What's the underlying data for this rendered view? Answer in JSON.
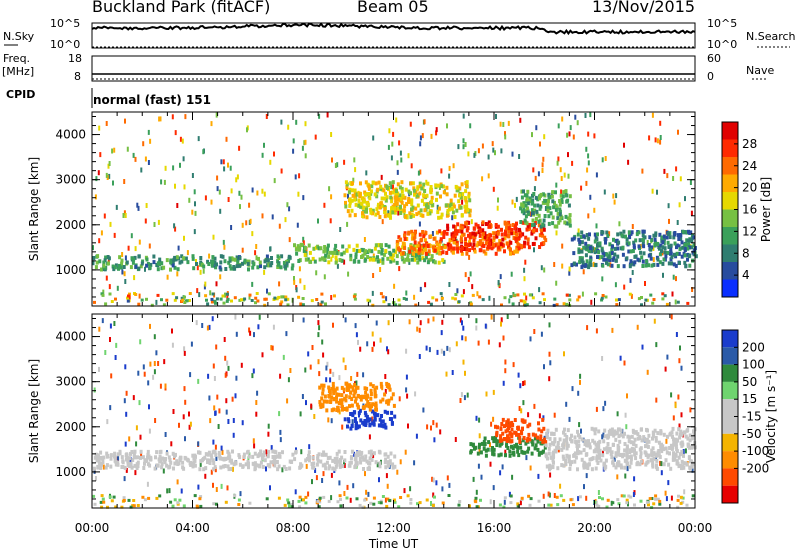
{
  "header": {
    "station": "Buckland Park (fitACF)",
    "beam": "Beam 05",
    "date": "13/Nov/2015"
  },
  "strip": {
    "nsky_label": "N.Sky",
    "nsearch_label": "N.Search",
    "nsky_ticks": [
      "10^5",
      "10^0"
    ],
    "nsearch_ticks": [
      "10^5",
      "10^0"
    ],
    "freq_label_line1": "Freq.",
    "freq_label_line2": "[MHz]",
    "freq_ticks": [
      "18",
      "8"
    ],
    "nave_label": "Nave",
    "nave_ticks": [
      "60",
      "0"
    ],
    "cpid_label": "CPID",
    "cpid_text": "normal (fast) 151"
  },
  "colors": {
    "velocity_positive": [
      "#1a3ccc",
      "#2a5aa8",
      "#2f8a3c",
      "#6fd46f"
    ],
    "velocity_neutral": "#c7c7c7",
    "velocity_negative": [
      "#f4b400",
      "#ff8c00",
      "#ff4a00",
      "#e60000"
    ],
    "power_scale": [
      "#0a2fff",
      "#284c9e",
      "#2f7d70",
      "#3aa05a",
      "#76c043",
      "#e6d800",
      "#ffaa00",
      "#ff6a00",
      "#ff2a00",
      "#e00000"
    ]
  },
  "chart_data": [
    {
      "type": "heatmap",
      "panel": "power",
      "ylabel": "Slant Range [km]",
      "yticks": [
        "1000",
        "2000",
        "3000",
        "4000"
      ],
      "ylim": [
        200,
        4500
      ],
      "xlim": [
        0,
        24
      ],
      "colorbar_label": "Power [dB]",
      "colorbar_ticks": [
        "4",
        "8",
        "12",
        "16",
        "20",
        "24",
        "28"
      ],
      "colorbar_range": [
        0,
        32
      ],
      "features": [
        {
          "t": [
            0,
            8
          ],
          "range": [
            1050,
            1350
          ],
          "db": 10
        },
        {
          "t": [
            8,
            14
          ],
          "range": [
            1200,
            1600
          ],
          "db": 14
        },
        {
          "t": [
            12,
            17
          ],
          "range": [
            1400,
            1900
          ],
          "db": 24
        },
        {
          "t": [
            14,
            18
          ],
          "range": [
            1500,
            2100
          ],
          "db": 27
        },
        {
          "t": [
            10,
            15
          ],
          "range": [
            2200,
            3000
          ],
          "db": 18
        },
        {
          "t": [
            17,
            19
          ],
          "range": [
            2000,
            2800
          ],
          "db": 12
        },
        {
          "t": [
            19,
            24
          ],
          "range": [
            1100,
            1900
          ],
          "db": 8
        }
      ]
    },
    {
      "type": "heatmap",
      "panel": "velocity",
      "ylabel": "Slant Range [km]",
      "yticks": [
        "1000",
        "2000",
        "3000",
        "4000"
      ],
      "ylim": [
        200,
        4500
      ],
      "xlabel": "Time UT",
      "xticks": [
        "00:00",
        "04:00",
        "08:00",
        "12:00",
        "16:00",
        "20:00",
        "00:00"
      ],
      "xlim": [
        0,
        24
      ],
      "colorbar_label": "Velocity [m s⁻¹]",
      "colorbar_ticks": [
        "200",
        "100",
        "50",
        "15",
        "-15",
        "-50",
        "-100",
        "-200"
      ],
      "colorbar_range": [
        -250,
        250
      ],
      "features": [
        {
          "t": [
            0,
            12
          ],
          "range": [
            1100,
            1500
          ],
          "v": 0
        },
        {
          "t": [
            10,
            12
          ],
          "range": [
            2000,
            2400
          ],
          "v": 200
        },
        {
          "t": [
            9,
            12
          ],
          "range": [
            2400,
            3000
          ],
          "v": -60
        },
        {
          "t": [
            15,
            18
          ],
          "range": [
            1400,
            1800
          ],
          "v": 50
        },
        {
          "t": [
            16,
            18
          ],
          "range": [
            1700,
            2200
          ],
          "v": -120
        },
        {
          "t": [
            18,
            24
          ],
          "range": [
            1100,
            2000
          ],
          "v": 0
        }
      ]
    }
  ]
}
